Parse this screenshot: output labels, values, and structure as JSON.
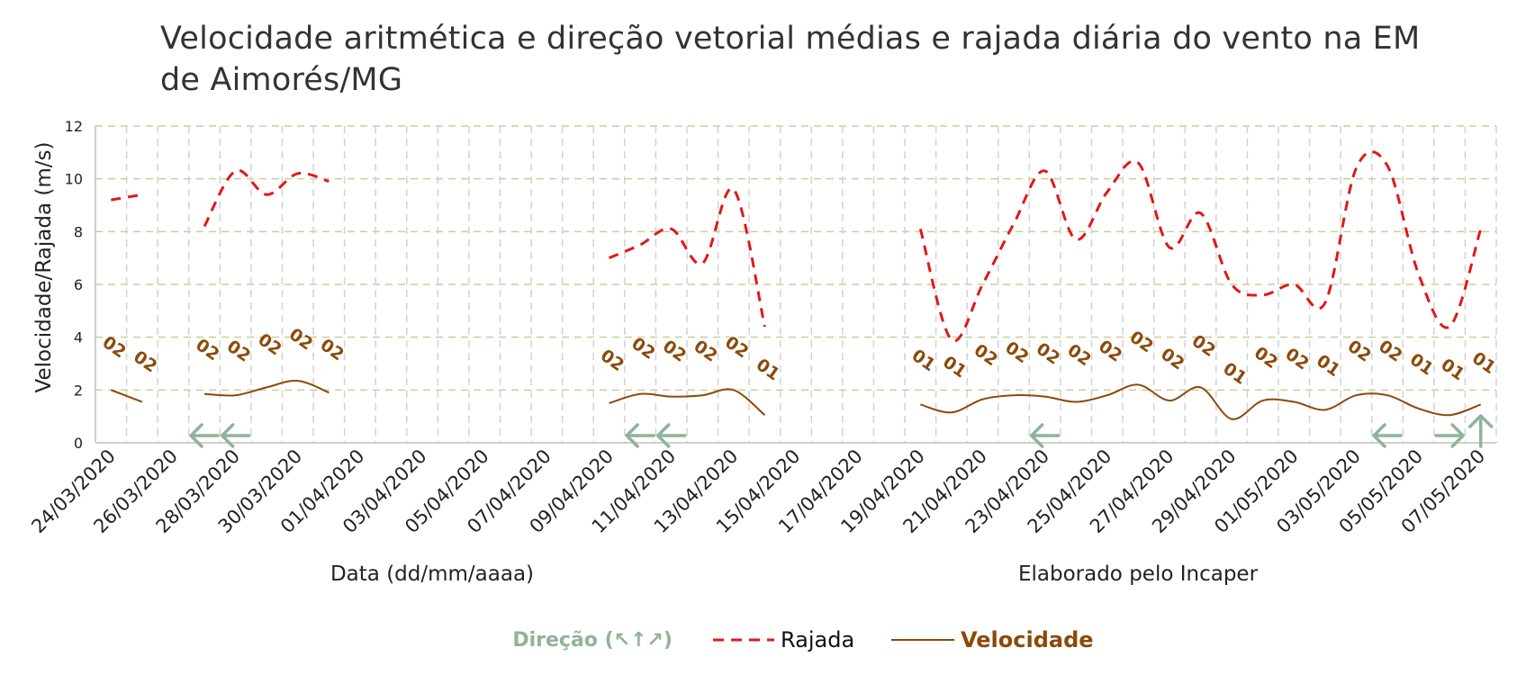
{
  "chart_data": {
    "type": "line",
    "title": "Velocidade aritmética e direção vetorial médias e rajada diária do vento na EM de Aimorés/MG",
    "xlabel": "Data (dd/mm/aaaa)",
    "note": "Elaborado pelo Incaper",
    "ylabel": "Velocidade/Rajada (m/s)",
    "ylim": [
      0,
      12
    ],
    "yticks": [
      0,
      2,
      4,
      6,
      8,
      10,
      12
    ],
    "grid": true,
    "legend_position": "bottom",
    "x_start": "24/03/2020",
    "x_labels": [
      "24/03/2020",
      "26/03/2020",
      "28/03/2020",
      "30/03/2020",
      "01/04/2020",
      "03/04/2020",
      "05/04/2020",
      "07/04/2020",
      "09/04/2020",
      "11/04/2020",
      "13/04/2020",
      "15/04/2020",
      "17/04/2020",
      "19/04/2020",
      "21/04/2020",
      "23/04/2020",
      "25/04/2020",
      "27/04/2020",
      "29/04/2020",
      "01/05/2020",
      "03/05/2020",
      "05/05/2020",
      "07/05/2020"
    ],
    "series": [
      {
        "name": "Rajada",
        "color": "#e01818",
        "style": "dashed",
        "values": [
          9.2,
          9.4,
          null,
          8.2,
          10.3,
          9.4,
          10.2,
          9.9,
          null,
          null,
          null,
          null,
          null,
          null,
          null,
          null,
          7.0,
          7.5,
          8.1,
          6.8,
          9.6,
          4.4,
          null,
          null,
          null,
          null,
          8.1,
          3.9,
          6.0,
          8.3,
          10.3,
          7.7,
          9.5,
          10.6,
          7.4,
          8.7,
          6.0,
          5.6,
          6.0,
          5.3,
          10.4,
          10.5,
          6.4,
          4.4,
          8.1
        ]
      },
      {
        "name": "Velocidade",
        "color": "#8b4a0a",
        "style": "solid",
        "values": [
          2.0,
          1.55,
          null,
          1.85,
          1.8,
          2.1,
          2.35,
          1.9,
          null,
          null,
          null,
          null,
          null,
          null,
          null,
          null,
          1.5,
          1.85,
          1.75,
          1.8,
          2.0,
          1.05,
          null,
          null,
          null,
          null,
          1.45,
          1.15,
          1.65,
          1.8,
          1.75,
          1.55,
          1.8,
          2.2,
          1.6,
          2.1,
          0.9,
          1.6,
          1.55,
          1.25,
          1.8,
          1.8,
          1.3,
          1.05,
          1.45
        ]
      }
    ],
    "direction_codes": [
      "02",
      "02",
      null,
      "02",
      "02",
      "02",
      "02",
      "02",
      null,
      null,
      null,
      null,
      null,
      null,
      null,
      null,
      "02",
      "02",
      "02",
      "02",
      "02",
      "01",
      null,
      null,
      null,
      null,
      "01",
      "01",
      "02",
      "02",
      "02",
      "02",
      "02",
      "02",
      "02",
      "02",
      "01",
      "02",
      "02",
      "01",
      "02",
      "02",
      "01",
      "01",
      "01"
    ],
    "direction_arrows": [
      null,
      null,
      null,
      "←",
      "←",
      null,
      null,
      null,
      null,
      null,
      null,
      null,
      null,
      null,
      null,
      null,
      null,
      "←",
      "←",
      null,
      null,
      null,
      null,
      null,
      null,
      null,
      null,
      null,
      null,
      null,
      "←",
      null,
      null,
      null,
      null,
      null,
      null,
      null,
      null,
      null,
      null,
      "←",
      null,
      "→",
      "↑"
    ],
    "legend": {
      "direction": "Direção (↖↑↗)",
      "gust": "Rajada",
      "speed": "Velocidade"
    }
  }
}
